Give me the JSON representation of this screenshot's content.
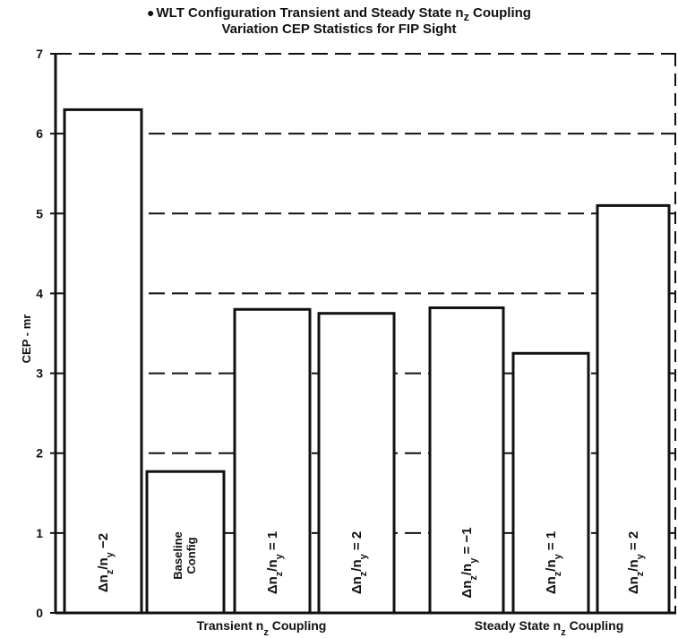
{
  "chart_data": {
    "type": "bar",
    "title": {
      "bullet": "●",
      "line1_pre": "WLT Configuration Transient and Steady State n",
      "line1_sub": "z",
      "line1_post": " Coupling",
      "line2": "Variation CEP Statistics for FIP Sight"
    },
    "xlabel": "",
    "ylabel": "CEP - mr",
    "ylim": [
      0,
      7
    ],
    "yticks": [
      0,
      1,
      2,
      3,
      4,
      5,
      6,
      7
    ],
    "grid": "dashed horizontal",
    "bars": [
      {
        "label": {
          "a": "Δn",
          "b": "z",
          "c": "/n",
          "d": "y",
          "e": " −2"
        },
        "value": 6.3
      },
      {
        "label": {
          "line1": "Baseline",
          "line2": "Config"
        },
        "value": 1.77
      },
      {
        "label": {
          "a": "Δn",
          "b": "z",
          "c": "/n",
          "d": "y",
          "e": " = 1"
        },
        "value": 3.8
      },
      {
        "label": {
          "a": "Δn",
          "b": "z",
          "c": "/n",
          "d": "y",
          "e": " = 2"
        },
        "value": 3.75
      },
      {
        "label": {
          "a": "Δn",
          "b": "z",
          "c": "/n",
          "d": "y",
          "e": " = −1"
        },
        "value": 3.82
      },
      {
        "label": {
          "a": "Δn",
          "b": "z",
          "c": "/n",
          "d": "y",
          "e": " = 1"
        },
        "value": 3.25
      },
      {
        "label": {
          "a": "Δn",
          "b": "z",
          "c": "/n",
          "d": "y",
          "e": " = 2"
        },
        "value": 5.1
      }
    ],
    "groups": [
      {
        "label": {
          "pre": "Transient n",
          "sub": "z",
          "post": " Coupling"
        }
      },
      {
        "label": {
          "pre": "Steady State n",
          "sub": "z",
          "post": " Coupling"
        }
      }
    ]
  }
}
